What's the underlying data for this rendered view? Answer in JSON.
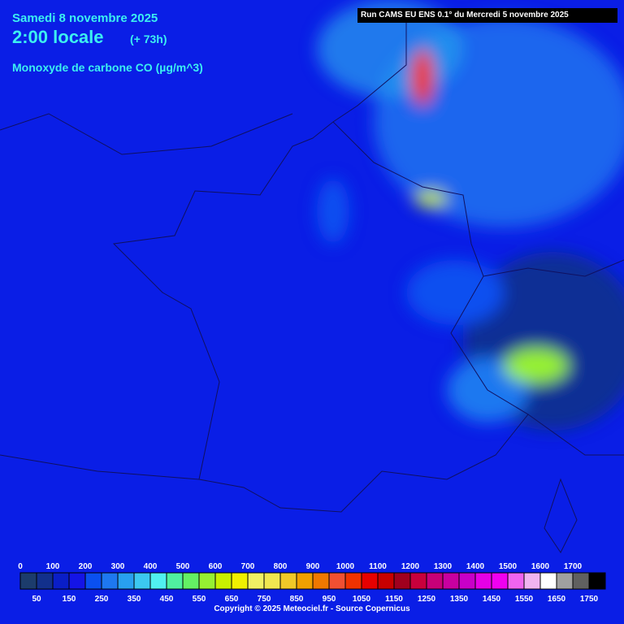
{
  "header": {
    "date": "Samedi 8 novembre 2025",
    "time": "2:00 locale",
    "lead": "(+ 73h)",
    "variable": "Monoxyde de carbone CO (µg/m^3)",
    "run": "Run CAMS EU ENS 0.1° du Mercredi 5 novembre 2025"
  },
  "legend": {
    "top_labels": [
      0,
      100,
      200,
      300,
      400,
      500,
      600,
      700,
      800,
      900,
      1000,
      1100,
      1200,
      1300,
      1400,
      1500,
      1600,
      1700
    ],
    "bottom_labels": [
      50,
      150,
      250,
      350,
      450,
      550,
      650,
      750,
      850,
      950,
      1050,
      1150,
      1250,
      1350,
      1450,
      1550,
      1650,
      1750
    ],
    "colors": [
      "#1c3c6c",
      "#12308c",
      "#0a1ec8",
      "#1414e6",
      "#0a50f0",
      "#1e78f0",
      "#28a0f0",
      "#3cc8f0",
      "#50f0f0",
      "#50f0a0",
      "#64f064",
      "#96f032",
      "#c8f000",
      "#f0f000",
      "#f0f064",
      "#f0e650",
      "#f0c828",
      "#f0a000",
      "#f07800",
      "#f05032",
      "#f03200",
      "#e60000",
      "#c80000",
      "#a0001e",
      "#c8003c",
      "#c80078",
      "#c800a0",
      "#c800c8",
      "#e600e6",
      "#f000f0",
      "#f064f0",
      "#f0b4f0",
      "#ffffff",
      "#a0a0a0",
      "#606060",
      "#000000"
    ]
  },
  "footer": {
    "copyright": "Copyright © 2025 Meteociel.fr - Source Copernicus"
  }
}
